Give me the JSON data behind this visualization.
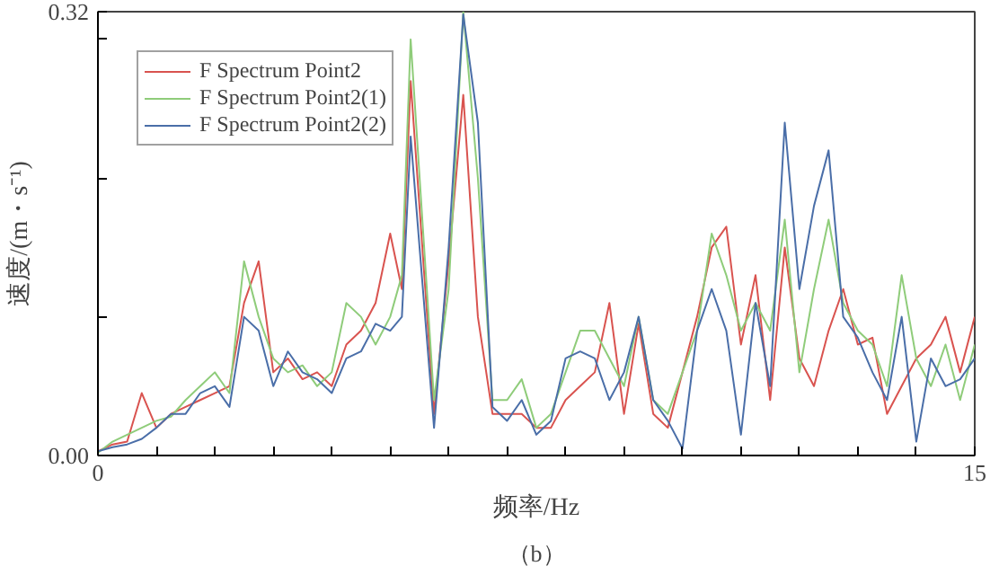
{
  "chart_data": {
    "type": "line",
    "xlabel": "频率/Hz",
    "ylabel": "速度/(m・s⁻¹)",
    "annotations": [
      "（b）"
    ],
    "x": [
      0,
      0.25,
      0.5,
      0.75,
      1,
      1.25,
      1.5,
      1.75,
      2,
      2.25,
      2.5,
      2.75,
      3,
      3.25,
      3.5,
      3.75,
      4,
      4.25,
      4.5,
      4.75,
      5,
      5.2,
      5.35,
      5.75,
      6,
      6.25,
      6.5,
      6.75,
      7,
      7.25,
      7.5,
      7.75,
      8,
      8.25,
      8.5,
      8.75,
      9,
      9.25,
      9.5,
      9.75,
      10,
      10.25,
      10.5,
      10.75,
      11,
      11.25,
      11.5,
      11.75,
      12,
      12.25,
      12.5,
      12.75,
      13,
      13.25,
      13.5,
      13.75,
      14,
      14.25,
      14.5,
      14.75,
      15
    ],
    "series": [
      {
        "name": "F Spectrum Point2",
        "color": "#d9534f",
        "values": [
          0.003,
          0.008,
          0.01,
          0.045,
          0.02,
          0.03,
          0.035,
          0.04,
          0.045,
          0.05,
          0.11,
          0.14,
          0.06,
          0.07,
          0.055,
          0.06,
          0.05,
          0.08,
          0.09,
          0.11,
          0.16,
          0.12,
          0.27,
          0.03,
          0.14,
          0.26,
          0.1,
          0.03,
          0.03,
          0.03,
          0.02,
          0.02,
          0.04,
          0.05,
          0.06,
          0.11,
          0.03,
          0.095,
          0.03,
          0.02,
          0.06,
          0.1,
          0.15,
          0.165,
          0.08,
          0.13,
          0.04,
          0.15,
          0.07,
          0.05,
          0.09,
          0.12,
          0.08,
          0.085,
          0.03,
          0.05,
          0.07,
          0.08,
          0.1,
          0.06,
          0.1
        ]
      },
      {
        "name": "F Spectrum Point2(1)",
        "color": "#8fcc7a",
        "values": [
          0.002,
          0.01,
          0.015,
          0.02,
          0.025,
          0.028,
          0.04,
          0.05,
          0.06,
          0.045,
          0.14,
          0.1,
          0.07,
          0.06,
          0.065,
          0.05,
          0.06,
          0.11,
          0.1,
          0.08,
          0.1,
          0.13,
          0.3,
          0.04,
          0.12,
          0.32,
          0.2,
          0.04,
          0.04,
          0.055,
          0.02,
          0.03,
          0.06,
          0.09,
          0.09,
          0.07,
          0.05,
          0.1,
          0.04,
          0.03,
          0.06,
          0.09,
          0.16,
          0.13,
          0.09,
          0.11,
          0.09,
          0.17,
          0.06,
          0.12,
          0.17,
          0.11,
          0.09,
          0.08,
          0.05,
          0.13,
          0.07,
          0.05,
          0.08,
          0.04,
          0.08
        ]
      },
      {
        "name": "F Spectrum Point2(2)",
        "color": "#4a6ea8",
        "values": [
          0.003,
          0.006,
          0.008,
          0.012,
          0.02,
          0.03,
          0.03,
          0.045,
          0.05,
          0.035,
          0.1,
          0.09,
          0.05,
          0.075,
          0.06,
          0.055,
          0.045,
          0.07,
          0.075,
          0.095,
          0.09,
          0.1,
          0.23,
          0.02,
          0.15,
          0.318,
          0.24,
          0.035,
          0.025,
          0.04,
          0.015,
          0.025,
          0.07,
          0.075,
          0.07,
          0.04,
          0.06,
          0.1,
          0.04,
          0.025,
          0.005,
          0.09,
          0.12,
          0.09,
          0.015,
          0.11,
          0.05,
          0.24,
          0.12,
          0.18,
          0.22,
          0.1,
          0.085,
          0.06,
          0.04,
          0.1,
          0.01,
          0.07,
          0.05,
          0.055,
          0.07
        ]
      }
    ],
    "xlim": [
      0,
      15
    ],
    "ylim": [
      0,
      0.32
    ],
    "xticks": [
      0,
      {
        "value": 1,
        "label": null
      },
      {
        "value": 2,
        "label": null
      },
      {
        "value": 3,
        "label": null
      },
      {
        "value": 4,
        "label": null
      },
      {
        "value": 5,
        "label": null
      },
      {
        "value": 6,
        "label": null
      },
      {
        "value": 7,
        "label": null
      },
      {
        "value": 8,
        "label": null
      },
      {
        "value": 9,
        "label": null
      },
      {
        "value": 10,
        "label": null
      },
      {
        "value": 11,
        "label": null
      },
      {
        "value": 12,
        "label": null
      },
      {
        "value": 13,
        "label": null
      },
      {
        "value": 14,
        "label": null
      },
      15
    ],
    "yticks": [
      {
        "value": 0,
        "label": "0.00"
      },
      {
        "value": 0.1,
        "label": null
      },
      {
        "value": 0.2,
        "label": null
      },
      {
        "value": 0.3,
        "label": null
      },
      {
        "value": 0.32,
        "label": "0.32"
      }
    ],
    "grid": false,
    "legend": "top left",
    "line_style": "solid"
  }
}
